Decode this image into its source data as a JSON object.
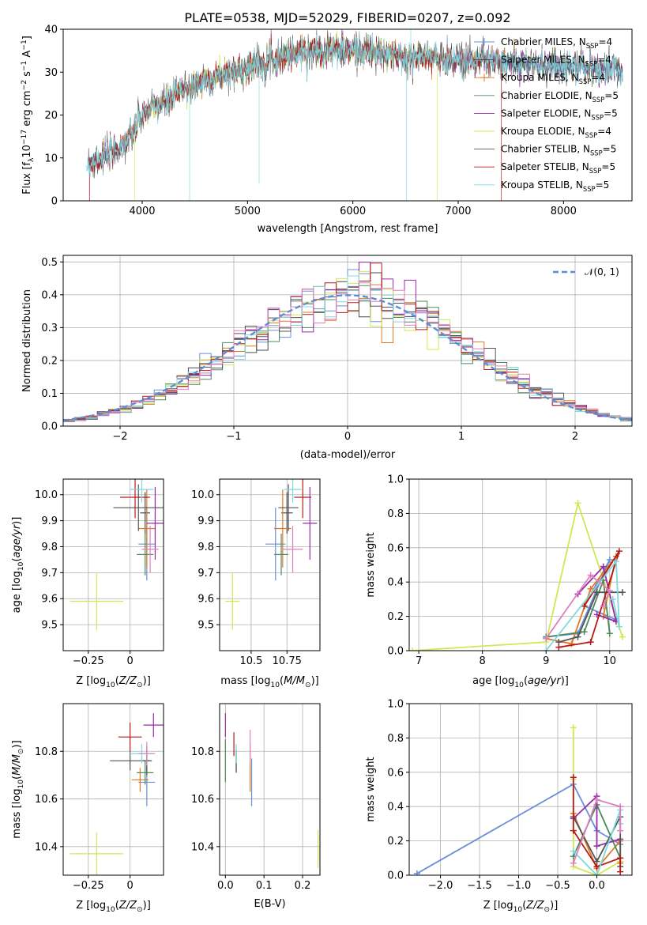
{
  "title": "PLATE=0538, MJD=52029, FIBERID=0207, z=0.092",
  "colors": {
    "chabrier_miles": "#6a8fd8",
    "salpeter_miles": "#4a4a4a",
    "kroupa_miles": "#e07a22",
    "chabrier_elodie": "#4a8a5a",
    "salpeter_elodie": "#9a2aa8",
    "kroupa_elodie": "#d4e655",
    "chabrier_stelib": "#555555",
    "salpeter_stelib": "#b31b1b",
    "kroupa_stelib": "#7fd8e0",
    "normal": "#5b8ed6",
    "grid": "#b0b0b0"
  },
  "chart_data": [
    {
      "id": "spectrum",
      "type": "line",
      "title": "PLATE=0538, MJD=52029, FIBERID=0207, z=0.092",
      "xlabel": "wavelength [Angstrom, rest frame]",
      "ylabel": "Flux [f$_\\lambda$10$^{-17}$ erg cm$^{-2}$ s$^{-1}$ A$^{-1}$]",
      "ylabel_parts": {
        "a": "Flux [f",
        "b": "λ",
        "c": "10",
        "d": "−17",
        "e": " erg cm",
        "f": "−2",
        "g": " s",
        "h": "−1",
        "i": " A",
        "j": "−1",
        "k": "]"
      },
      "xlim": [
        3250,
        8650
      ],
      "ylim": [
        0,
        40
      ],
      "xticks": [
        4000,
        5000,
        6000,
        7000,
        8000
      ],
      "yticks": [
        0,
        10,
        20,
        30,
        40
      ],
      "grid": false,
      "legend_position": "top-right",
      "legend": [
        {
          "name": "Chabrier MILES, N",
          "sub": "SSP",
          "suffix": "=4",
          "marker": "+"
        },
        {
          "name": "Salpeter MILES, N",
          "sub": "SSP",
          "suffix": "=4",
          "marker": "+"
        },
        {
          "name": "Kroupa MILES, N",
          "sub": "SSP",
          "suffix": "=4",
          "marker": "+"
        },
        {
          "name": "Chabrier ELODIE, N",
          "sub": "SSP",
          "suffix": "=5",
          "marker": ""
        },
        {
          "name": "Salpeter ELODIE, N",
          "sub": "SSP",
          "suffix": "=5",
          "marker": ""
        },
        {
          "name": "Kroupa ELODIE, N",
          "sub": "SSP",
          "suffix": "=4",
          "marker": ""
        },
        {
          "name": "Chabrier STELIB, N",
          "sub": "SSP",
          "suffix": "=5",
          "marker": ""
        },
        {
          "name": "Salpeter STELIB, N",
          "sub": "SSP",
          "suffix": "=5",
          "marker": ""
        },
        {
          "name": "Kroupa STELIB, N",
          "sub": "SSP",
          "suffix": "=5",
          "marker": ""
        }
      ],
      "continuum": {
        "x": [
          3500,
          3700,
          3900,
          4000,
          4200,
          4400,
          4600,
          4800,
          5000,
          5200,
          5400,
          5600,
          5800,
          6000,
          6200,
          6400,
          6600,
          6800,
          7000,
          7200,
          7400,
          7600,
          7800,
          8000,
          8200,
          8400,
          8600
        ],
        "y": [
          9,
          11,
          15,
          20,
          23,
          26,
          28,
          29.5,
          31,
          33,
          34,
          35,
          35.2,
          35,
          34.5,
          33.8,
          33.5,
          33.2,
          33,
          32.8,
          32.3,
          32,
          31.7,
          31.5,
          31,
          30.8,
          30.5
        ]
      },
      "dips": [
        {
          "x": 3500,
          "to": 0,
          "series": [
            4,
            7
          ]
        },
        {
          "x": 3930,
          "to": 0,
          "series": [
            5
          ]
        },
        {
          "x": 4450,
          "to": 0,
          "series": [
            8
          ]
        },
        {
          "x": 5110,
          "to": 4,
          "series": [
            8
          ]
        },
        {
          "x": 6510,
          "to": 0,
          "series": [
            8
          ]
        },
        {
          "x": 6550,
          "to": 40,
          "series": [
            8
          ]
        },
        {
          "x": 6800,
          "to": 0,
          "series": [
            5
          ]
        },
        {
          "x": 7410,
          "to": 0,
          "series": [
            7
          ]
        }
      ]
    },
    {
      "id": "residuals",
      "type": "histogram",
      "xlabel": "(data-model)/error",
      "ylabel": "Normed distribution",
      "xlim": [
        -2.5,
        2.5
      ],
      "ylim": [
        0,
        0.52
      ],
      "xticks": [
        -2,
        -1,
        0,
        1,
        2
      ],
      "yticks": [
        0.0,
        0.1,
        0.2,
        0.3,
        0.4,
        0.5
      ],
      "grid": true,
      "legend_position": "top-right",
      "legend": [
        {
          "name": "𝒩(0, 1)"
        }
      ],
      "bin_width": 0.1,
      "normal": {
        "mean": 0,
        "sigma": 1
      }
    },
    {
      "id": "age-vs-Z",
      "type": "errorbar",
      "xlabel": "Z [log$_{10}$(Z/Z$_\\odot$)]",
      "ylabel": "age  [log$_{10}$(age/yr)]",
      "xlim": [
        -0.4,
        0.2
      ],
      "ylim": [
        9.4,
        10.06
      ],
      "xticks": [
        -0.25,
        0.0
      ],
      "yticks": [
        9.5,
        9.6,
        9.7,
        9.8,
        9.9,
        10.0
      ],
      "grid": true,
      "points": [
        {
          "series": "chabrier_miles",
          "x": 0.1,
          "y": 9.81,
          "xerr": 0.05,
          "yerr": 0.14
        },
        {
          "series": "salpeter_miles",
          "x": 0.09,
          "y": 9.93,
          "xerr": 0.03,
          "yerr": 0.08
        },
        {
          "series": "kroupa_miles",
          "x": 0.1,
          "y": 9.87,
          "xerr": 0.05,
          "yerr": 0.15
        },
        {
          "series": "chabrier_elodie",
          "x": 0.09,
          "y": 9.77,
          "xerr": 0.05,
          "yerr": 0.08
        },
        {
          "series": "salpeter_elodie",
          "x": 0.15,
          "y": 9.89,
          "xerr": 0.05,
          "yerr": 0.14
        },
        {
          "series": "kroupa_elodie",
          "x": -0.2,
          "y": 9.59,
          "xerr": 0.16,
          "yerr": 0.11
        },
        {
          "series": "chabrier_stelib",
          "x": 0.05,
          "y": 9.95,
          "xerr": 0.15,
          "yerr": 0.09
        },
        {
          "series": "salpeter_stelib",
          "x": 0.03,
          "y": 9.99,
          "xerr": 0.09,
          "yerr": 0.08
        },
        {
          "series": "kroupa_stelib",
          "x": 0.07,
          "y": 10.02,
          "xerr": 0.07,
          "yerr": 0.05
        },
        {
          "series": "pink",
          "x": 0.12,
          "y": 9.79,
          "xerr": 0.05,
          "yerr": 0.09
        }
      ]
    },
    {
      "id": "age-vs-mass",
      "type": "errorbar",
      "xlabel": "mass [log$_{10}$(M/M$_\\odot$)]",
      "ylabel": "",
      "xlim": [
        10.28,
        10.98
      ],
      "ylim": [
        9.4,
        10.06
      ],
      "xticks": [
        10.5,
        10.75
      ],
      "yticks": [
        9.5,
        9.6,
        9.7,
        9.8,
        9.9,
        10.0
      ],
      "grid": true,
      "points": [
        {
          "series": "chabrier_miles",
          "x": 10.67,
          "y": 9.81,
          "xerr": 0.07,
          "yerr": 0.14
        },
        {
          "series": "salpeter_miles",
          "x": 10.75,
          "y": 9.93,
          "xerr": 0.04,
          "yerr": 0.08
        },
        {
          "series": "kroupa_miles",
          "x": 10.72,
          "y": 9.87,
          "xerr": 0.06,
          "yerr": 0.15
        },
        {
          "series": "chabrier_elodie",
          "x": 10.71,
          "y": 9.77,
          "xerr": 0.05,
          "yerr": 0.08
        },
        {
          "series": "salpeter_elodie",
          "x": 10.91,
          "y": 9.89,
          "xerr": 0.05,
          "yerr": 0.14
        },
        {
          "series": "kroupa_elodie",
          "x": 10.37,
          "y": 9.59,
          "xerr": 0.05,
          "yerr": 0.11
        },
        {
          "series": "chabrier_stelib",
          "x": 10.76,
          "y": 9.95,
          "xerr": 0.07,
          "yerr": 0.09
        },
        {
          "series": "salpeter_stelib",
          "x": 10.86,
          "y": 9.99,
          "xerr": 0.06,
          "yerr": 0.08
        },
        {
          "series": "kroupa_stelib",
          "x": 10.79,
          "y": 10.02,
          "xerr": 0.06,
          "yerr": 0.05
        },
        {
          "series": "pink",
          "x": 10.79,
          "y": 9.79,
          "xerr": 0.07,
          "yerr": 0.09
        }
      ]
    },
    {
      "id": "weight-vs-age",
      "type": "line",
      "xlabel": "age  [log$_{10}$(age/yr)]",
      "ylabel": "mass weight",
      "xlim": [
        6.85,
        10.35
      ],
      "ylim": [
        0,
        1.0
      ],
      "xticks": [
        7,
        8,
        9,
        10
      ],
      "yticks": [
        0.0,
        0.2,
        0.4,
        0.6,
        0.8,
        1.0
      ],
      "grid": true,
      "series": [
        {
          "series": "kroupa_elodie",
          "x": [
            6.9,
            9.0,
            9.5,
            10.2
          ],
          "y": [
            0.0,
            0.05,
            0.86,
            0.08
          ]
        },
        {
          "series": "chabrier_miles",
          "x": [
            9.0,
            9.5,
            10.0,
            9.6,
            10.1
          ],
          "y": [
            0.08,
            0.1,
            0.53,
            0.26,
            0.18
          ]
        },
        {
          "series": "kroupa_miles",
          "x": [
            9.0,
            9.4,
            9.7,
            10.1,
            9.9
          ],
          "y": [
            0.07,
            0.04,
            0.36,
            0.55,
            0.2
          ]
        },
        {
          "series": "chabrier_elodie",
          "x": [
            9.0,
            9.6,
            9.9,
            10.0
          ],
          "y": [
            0.08,
            0.11,
            0.41,
            0.1
          ]
        },
        {
          "series": "salpeter_elodie",
          "x": [
            9.5,
            9.9,
            10.1,
            9.8
          ],
          "y": [
            0.33,
            0.49,
            0.17,
            0.21
          ]
        },
        {
          "series": "chabrier_stelib",
          "x": [
            9.2,
            9.5,
            9.8,
            10.2
          ],
          "y": [
            0.05,
            0.08,
            0.34,
            0.34
          ]
        },
        {
          "series": "salpeter_stelib",
          "x": [
            9.2,
            9.7,
            10.15,
            9.6
          ],
          "y": [
            0.02,
            0.05,
            0.58,
            0.26
          ]
        },
        {
          "series": "kroupa_stelib",
          "x": [
            9.0,
            10.1,
            10.15,
            10.05
          ],
          "y": [
            0.0,
            0.52,
            0.14,
            0.3
          ]
        },
        {
          "series": "pink",
          "x": [
            9.0,
            9.7,
            10.0,
            9.9
          ],
          "y": [
            0.07,
            0.44,
            0.35,
            0.26
          ]
        }
      ]
    },
    {
      "id": "mass-vs-Z",
      "type": "errorbar",
      "xlabel": "Z [log$_{10}$(Z/Z$_\\odot$)]",
      "ylabel": "mass [log$_{10}$(M/M$_\\odot$)]",
      "xlim": [
        -0.4,
        0.2
      ],
      "ylim": [
        10.28,
        11.0
      ],
      "xticks": [
        -0.25,
        0.0
      ],
      "yticks": [
        10.4,
        10.6,
        10.8
      ],
      "grid": true,
      "points": [
        {
          "series": "chabrier_miles",
          "x": 0.1,
          "y": 10.67,
          "xerr": 0.05,
          "yerr": 0.1
        },
        {
          "series": "salpeter_miles",
          "x": 0.1,
          "y": 10.76,
          "xerr": 0.03,
          "yerr": 0.06
        },
        {
          "series": "kroupa_miles",
          "x": 0.06,
          "y": 10.68,
          "xerr": 0.05,
          "yerr": 0.05
        },
        {
          "series": "chabrier_elodie",
          "x": 0.09,
          "y": 10.71,
          "xerr": 0.05,
          "yerr": 0.05
        },
        {
          "series": "salpeter_elodie",
          "x": 0.14,
          "y": 10.91,
          "xerr": 0.06,
          "yerr": 0.05
        },
        {
          "series": "kroupa_elodie",
          "x": -0.2,
          "y": 10.37,
          "xerr": 0.16,
          "yerr": 0.09
        },
        {
          "series": "chabrier_stelib",
          "x": 0.0,
          "y": 10.76,
          "xerr": 0.12,
          "yerr": 0.04
        },
        {
          "series": "salpeter_stelib",
          "x": 0.0,
          "y": 10.86,
          "xerr": 0.07,
          "yerr": 0.06
        },
        {
          "series": "kroupa_stelib",
          "x": 0.07,
          "y": 10.79,
          "xerr": 0.07,
          "yerr": 0.04
        },
        {
          "series": "pink",
          "x": 0.1,
          "y": 10.79,
          "xerr": 0.05,
          "yerr": 0.05
        }
      ]
    },
    {
      "id": "mass-vs-ebv",
      "type": "errorbar",
      "xlabel": "E(B-V)",
      "ylabel": "",
      "xlim": [
        -0.015,
        0.245
      ],
      "ylim": [
        10.28,
        11.0
      ],
      "xticks": [
        0.0,
        0.1,
        0.2
      ],
      "xtick_labels": [
        "0.0",
        "0.1",
        "0.2"
      ],
      "yticks": [
        10.4,
        10.6,
        10.8
      ],
      "grid": true,
      "points": [
        {
          "series": "chabrier_miles",
          "x": 0.068,
          "y": 10.67,
          "xerr": 0.0,
          "yerr": 0.1
        },
        {
          "series": "salpeter_miles",
          "x": 0.028,
          "y": 10.76,
          "xerr": 0.0,
          "yerr": 0.05
        },
        {
          "series": "kroupa_miles",
          "x": 0.064,
          "y": 10.73,
          "xerr": 0.0,
          "yerr": 0.1
        },
        {
          "series": "chabrier_elodie",
          "x": 0.0,
          "y": 10.76,
          "xerr": 0.0,
          "yerr": 0.09
        },
        {
          "series": "salpeter_elodie",
          "x": 0.0,
          "y": 10.91,
          "xerr": 0.0,
          "yerr": 0.05
        },
        {
          "series": "kroupa_elodie",
          "x": 0.24,
          "y": 10.39,
          "xerr": 0.0,
          "yerr": 0.08
        },
        {
          "series": "chabrier_stelib",
          "x": 0.028,
          "y": 10.76,
          "xerr": 0.0,
          "yerr": 0.04
        },
        {
          "series": "salpeter_stelib",
          "x": 0.022,
          "y": 10.83,
          "xerr": 0.0,
          "yerr": 0.05
        },
        {
          "series": "kroupa_stelib",
          "x": 0.028,
          "y": 10.79,
          "xerr": 0.0,
          "yerr": 0.04
        },
        {
          "series": "pink",
          "x": 0.064,
          "y": 10.82,
          "xerr": 0.0,
          "yerr": 0.07
        }
      ]
    },
    {
      "id": "weight-vs-Z",
      "type": "line",
      "xlabel": "Z [log$_{10}$(Z/Z$_\\odot$)]",
      "ylabel": "mass weight",
      "xlim": [
        -2.4,
        0.45
      ],
      "ylim": [
        0,
        1.0
      ],
      "xticks": [
        -2.0,
        -1.5,
        -1.0,
        -0.5,
        0.0
      ],
      "xtick_labels": [
        "−2.0",
        "−1.5",
        "−1.0",
        "−0.5",
        "0.0"
      ],
      "yticks": [
        0.0,
        0.2,
        0.4,
        0.6,
        0.8,
        1.0
      ],
      "grid": true,
      "series": [
        {
          "series": "chabrier_miles",
          "x": [
            -2.3,
            -0.3,
            0.0,
            0.3
          ],
          "y": [
            0.01,
            0.53,
            0.26,
            0.18
          ]
        },
        {
          "series": "kroupa_elodie",
          "x": [
            -0.3,
            -0.3,
            -0.3,
            0.0,
            0.3
          ],
          "y": [
            0.86,
            0.56,
            0.05,
            0.0,
            0.08
          ]
        },
        {
          "series": "kroupa_miles",
          "x": [
            -0.3,
            0.0,
            0.3,
            0.3
          ],
          "y": [
            0.36,
            0.04,
            0.2,
            0.07
          ]
        },
        {
          "series": "chabrier_elodie",
          "x": [
            -0.3,
            0.0,
            0.3
          ],
          "y": [
            0.11,
            0.41,
            0.1
          ]
        },
        {
          "series": "salpeter_elodie",
          "x": [
            -0.3,
            0.0,
            0.0,
            0.3
          ],
          "y": [
            0.33,
            0.46,
            0.17,
            0.21
          ]
        },
        {
          "series": "chabrier_stelib",
          "x": [
            -0.3,
            0.0,
            0.3,
            0.3
          ],
          "y": [
            0.34,
            0.08,
            0.34,
            0.05
          ]
        },
        {
          "series": "salpeter_stelib",
          "x": [
            -0.3,
            -0.3,
            0.0,
            0.3,
            0.3
          ],
          "y": [
            0.57,
            0.26,
            0.05,
            0.1,
            0.02
          ]
        },
        {
          "series": "kroupa_stelib",
          "x": [
            -0.3,
            0.0,
            0.3,
            0.3
          ],
          "y": [
            0.14,
            0.0,
            0.38,
            0.3
          ]
        },
        {
          "series": "pink",
          "x": [
            -0.3,
            0.0,
            0.3,
            0.3
          ],
          "y": [
            0.07,
            0.44,
            0.4,
            0.26
          ]
        }
      ]
    }
  ]
}
